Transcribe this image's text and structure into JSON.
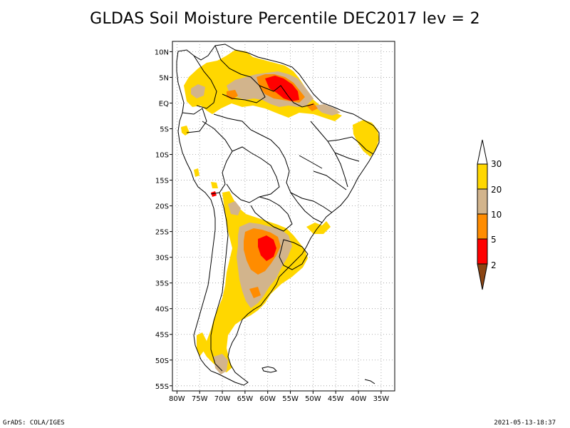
{
  "title": "GLDAS Soil Moisture Percentile DEC2017 lev = 2",
  "footer": {
    "left": "GrADS: COLA/IGES",
    "right": "2021-05-13-18:37"
  },
  "map": {
    "lon_range": [
      -81,
      -32
    ],
    "lat_range": [
      -56,
      12
    ],
    "lat_ticks": [
      "10N",
      "5N",
      "EQ",
      "5S",
      "10S",
      "15S",
      "20S",
      "25S",
      "30S",
      "35S",
      "40S",
      "45S",
      "50S",
      "55S"
    ],
    "lat_tick_values": [
      10,
      5,
      0,
      -5,
      -10,
      -15,
      -20,
      -25,
      -30,
      -35,
      -40,
      -45,
      -50,
      -55
    ],
    "lon_ticks": [
      "80W",
      "75W",
      "70W",
      "65W",
      "60W",
      "55W",
      "50W",
      "45W",
      "40W",
      "35W"
    ],
    "lon_tick_values": [
      -80,
      -75,
      -70,
      -65,
      -60,
      -55,
      -50,
      -45,
      -40,
      -35
    ],
    "grid": "dotted"
  },
  "colorbar": {
    "labels": [
      "30",
      "20",
      "10",
      "5",
      "2"
    ],
    "colors": {
      "above_30": "#ffffff",
      "20_30": "#ffd700",
      "10_20": "#d2b48c",
      "5_10": "#ff8c00",
      "2_5": "#ff0000",
      "below_2": "#8b4513"
    }
  }
}
